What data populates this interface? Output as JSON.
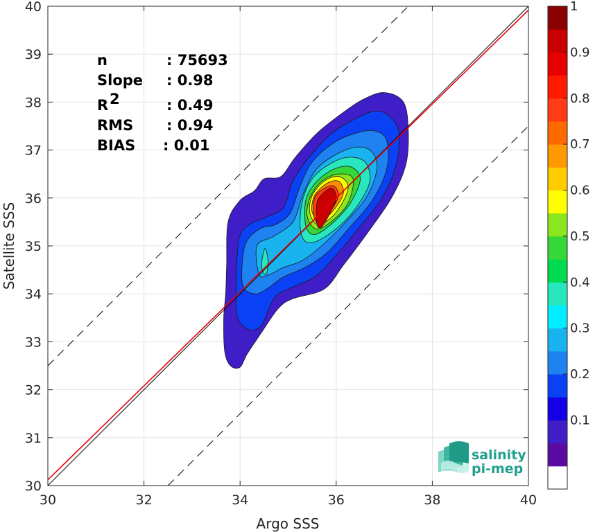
{
  "chart_data": {
    "type": "heatmap",
    "subtype": "density-contour-scatter",
    "xlabel": "Argo SSS",
    "ylabel": "Satellite SSS",
    "xlim": [
      30,
      40
    ],
    "ylim": [
      30,
      40
    ],
    "xticks": [
      30,
      32,
      34,
      36,
      38,
      40
    ],
    "yticks": [
      30,
      31,
      32,
      33,
      34,
      35,
      36,
      37,
      38,
      39,
      40
    ],
    "grid": true,
    "stats": [
      {
        "label": "n",
        "value": ": 75693"
      },
      {
        "label": "Slope",
        "value": ": 0.98"
      },
      {
        "label": "R",
        "sup": "2",
        "value": ": 0.49"
      },
      {
        "label": "RMS",
        "value": ": 0.94"
      },
      {
        "label": "BIAS",
        "value": ": 0.01"
      }
    ],
    "reference_lines": [
      {
        "kind": "identity",
        "slope": 1,
        "intercept": 0,
        "color": "#000000",
        "style": "solid"
      },
      {
        "kind": "fit",
        "slope": 0.98,
        "intercept": 0.72,
        "color": "#e8000b",
        "style": "solid"
      },
      {
        "kind": "offset",
        "slope": 1,
        "intercept": 2.5,
        "color": "#000000",
        "style": "dashed"
      },
      {
        "kind": "offset",
        "slope": 1,
        "intercept": -2.5,
        "color": "#000000",
        "style": "dashed"
      }
    ],
    "density_peak": {
      "x": 35.8,
      "y": 35.8
    },
    "contour_levels": [
      {
        "level": 0.05,
        "color": "#3f1ec8",
        "points": [
          [
            33.7,
            34.0
          ],
          [
            33.72,
            34.6
          ],
          [
            33.75,
            35.5
          ],
          [
            34.0,
            35.95
          ],
          [
            34.3,
            36.15
          ],
          [
            34.5,
            36.4
          ],
          [
            34.85,
            36.45
          ],
          [
            35.15,
            36.85
          ],
          [
            35.6,
            37.35
          ],
          [
            36.1,
            37.75
          ],
          [
            36.55,
            38.05
          ],
          [
            37.0,
            38.2
          ],
          [
            37.4,
            38.0
          ],
          [
            37.5,
            37.4
          ],
          [
            37.45,
            36.7
          ],
          [
            37.15,
            36.0
          ],
          [
            36.6,
            35.2
          ],
          [
            36.15,
            34.6
          ],
          [
            35.75,
            34.1
          ],
          [
            35.1,
            33.9
          ],
          [
            34.8,
            33.7
          ],
          [
            34.45,
            33.2
          ],
          [
            34.15,
            32.75
          ],
          [
            34.0,
            32.47
          ],
          [
            33.8,
            32.5
          ],
          [
            33.68,
            32.8
          ],
          [
            33.66,
            33.5
          ]
        ]
      },
      {
        "level": 0.15,
        "color": "#0a41f5",
        "points": [
          [
            33.95,
            33.5
          ],
          [
            33.92,
            34.2
          ],
          [
            33.98,
            35.15
          ],
          [
            34.2,
            35.45
          ],
          [
            34.55,
            35.6
          ],
          [
            34.9,
            35.8
          ],
          [
            35.1,
            36.35
          ],
          [
            35.4,
            36.8
          ],
          [
            35.85,
            37.3
          ],
          [
            36.3,
            37.6
          ],
          [
            36.75,
            37.8
          ],
          [
            37.05,
            37.75
          ],
          [
            37.3,
            37.4
          ],
          [
            37.25,
            36.7
          ],
          [
            36.95,
            36.0
          ],
          [
            36.45,
            35.35
          ],
          [
            35.95,
            34.75
          ],
          [
            35.55,
            34.35
          ],
          [
            35.0,
            34.1
          ],
          [
            34.7,
            33.9
          ],
          [
            34.45,
            33.35
          ],
          [
            34.2,
            33.25
          ]
        ]
      },
      {
        "level": 0.25,
        "color": "#1e82f0",
        "points": [
          [
            34.05,
            34.2
          ],
          [
            34.1,
            35.0
          ],
          [
            34.4,
            35.35
          ],
          [
            34.75,
            35.45
          ],
          [
            35.05,
            35.7
          ],
          [
            35.25,
            36.25
          ],
          [
            35.5,
            36.75
          ],
          [
            35.95,
            37.15
          ],
          [
            36.4,
            37.35
          ],
          [
            36.8,
            37.4
          ],
          [
            37.05,
            37.2
          ],
          [
            37.05,
            36.6
          ],
          [
            36.75,
            35.95
          ],
          [
            36.25,
            35.35
          ],
          [
            35.8,
            34.85
          ],
          [
            35.35,
            34.55
          ],
          [
            34.9,
            34.35
          ],
          [
            34.55,
            34.1
          ],
          [
            34.3,
            34.0
          ]
        ]
      },
      {
        "level": 0.35,
        "color": "#19b4f0",
        "points": [
          [
            34.4,
            34.4
          ],
          [
            34.35,
            35.0
          ],
          [
            34.7,
            35.2
          ],
          [
            35.1,
            35.5
          ],
          [
            35.3,
            36.05
          ],
          [
            35.55,
            36.55
          ],
          [
            35.9,
            36.85
          ],
          [
            36.35,
            37.05
          ],
          [
            36.7,
            37.0
          ],
          [
            36.85,
            36.65
          ],
          [
            36.65,
            36.05
          ],
          [
            36.2,
            35.5
          ],
          [
            35.75,
            35.05
          ],
          [
            35.3,
            34.7
          ],
          [
            34.9,
            34.55
          ],
          [
            34.6,
            34.4
          ]
        ]
      },
      {
        "level": 0.45,
        "color": "#28e6be",
        "points": [
          [
            35.25,
            35.4
          ],
          [
            35.3,
            35.95
          ],
          [
            35.5,
            36.4
          ],
          [
            35.85,
            36.7
          ],
          [
            36.25,
            36.85
          ],
          [
            36.6,
            36.75
          ],
          [
            36.7,
            36.35
          ],
          [
            36.45,
            35.85
          ],
          [
            36.05,
            35.4
          ],
          [
            35.6,
            35.1
          ],
          [
            35.35,
            35.1
          ]
        ]
      },
      {
        "level": 0.55,
        "color": "#35d837",
        "points": [
          [
            35.35,
            35.55
          ],
          [
            35.38,
            36.0
          ],
          [
            35.6,
            36.35
          ],
          [
            35.95,
            36.6
          ],
          [
            36.3,
            36.65
          ],
          [
            36.5,
            36.4
          ],
          [
            36.3,
            35.9
          ],
          [
            35.95,
            35.5
          ],
          [
            35.6,
            35.25
          ],
          [
            35.42,
            35.3
          ]
        ]
      },
      {
        "level": 0.6,
        "color": "#8ce61e",
        "points": [
          [
            35.4,
            35.6
          ],
          [
            35.45,
            36.0
          ],
          [
            35.7,
            36.35
          ],
          [
            36.05,
            36.5
          ],
          [
            36.35,
            36.4
          ],
          [
            36.25,
            35.9
          ],
          [
            35.95,
            35.55
          ],
          [
            35.6,
            35.35
          ]
        ]
      },
      {
        "level": 0.65,
        "color": "#ffff00",
        "points": [
          [
            35.45,
            35.7
          ],
          [
            35.5,
            36.05
          ],
          [
            35.75,
            36.35
          ],
          [
            36.05,
            36.45
          ],
          [
            36.25,
            36.25
          ],
          [
            36.1,
            35.85
          ],
          [
            35.85,
            35.55
          ],
          [
            35.6,
            35.45
          ]
        ]
      },
      {
        "level": 0.75,
        "color": "#ff8c00",
        "points": [
          [
            35.5,
            35.7
          ],
          [
            35.55,
            36.05
          ],
          [
            35.8,
            36.3
          ],
          [
            36.05,
            36.35
          ],
          [
            36.15,
            36.1
          ],
          [
            35.95,
            35.75
          ],
          [
            35.7,
            35.55
          ]
        ]
      },
      {
        "level": 0.85,
        "color": "#ff3c14",
        "points": [
          [
            35.55,
            35.55
          ],
          [
            35.55,
            36.0
          ],
          [
            35.75,
            36.2
          ],
          [
            35.95,
            36.25
          ],
          [
            36.05,
            36.05
          ],
          [
            35.9,
            35.75
          ],
          [
            35.7,
            35.5
          ]
        ]
      },
      {
        "level": 0.95,
        "color": "#c80000",
        "points": [
          [
            35.6,
            35.45
          ],
          [
            35.6,
            35.9
          ],
          [
            35.75,
            36.12
          ],
          [
            35.92,
            36.2
          ],
          [
            36.0,
            36.0
          ],
          [
            35.88,
            35.7
          ],
          [
            35.7,
            35.4
          ]
        ]
      }
    ],
    "isolated_patches": [
      {
        "color": "#28e6be",
        "points": [
          [
            34.45,
            34.65
          ],
          [
            34.52,
            34.95
          ],
          [
            34.58,
            34.7
          ],
          [
            34.55,
            34.42
          ],
          [
            34.48,
            34.45
          ]
        ]
      }
    ],
    "colorbar": {
      "ticks": [
        "0.1",
        "0.2",
        "0.3",
        "0.4",
        "0.5",
        "0.6",
        "0.7",
        "0.8",
        "0.9",
        "1"
      ],
      "colors": [
        "#5a0aa0",
        "#3f1ec8",
        "#1400e6",
        "#0a41f5",
        "#1e82f0",
        "#19b4f0",
        "#00eeff",
        "#28e6be",
        "#00dc50",
        "#35d837",
        "#8ce61e",
        "#ffff00",
        "#ffcc00",
        "#ff9900",
        "#ff6a00",
        "#ff3c14",
        "#ff1a00",
        "#e60000",
        "#c80000",
        "#8b0000"
      ],
      "bottom_color": "#ffffff"
    }
  },
  "logo": {
    "line1": "salinity",
    "line2": "pi-mep",
    "color": "#20a08c"
  }
}
